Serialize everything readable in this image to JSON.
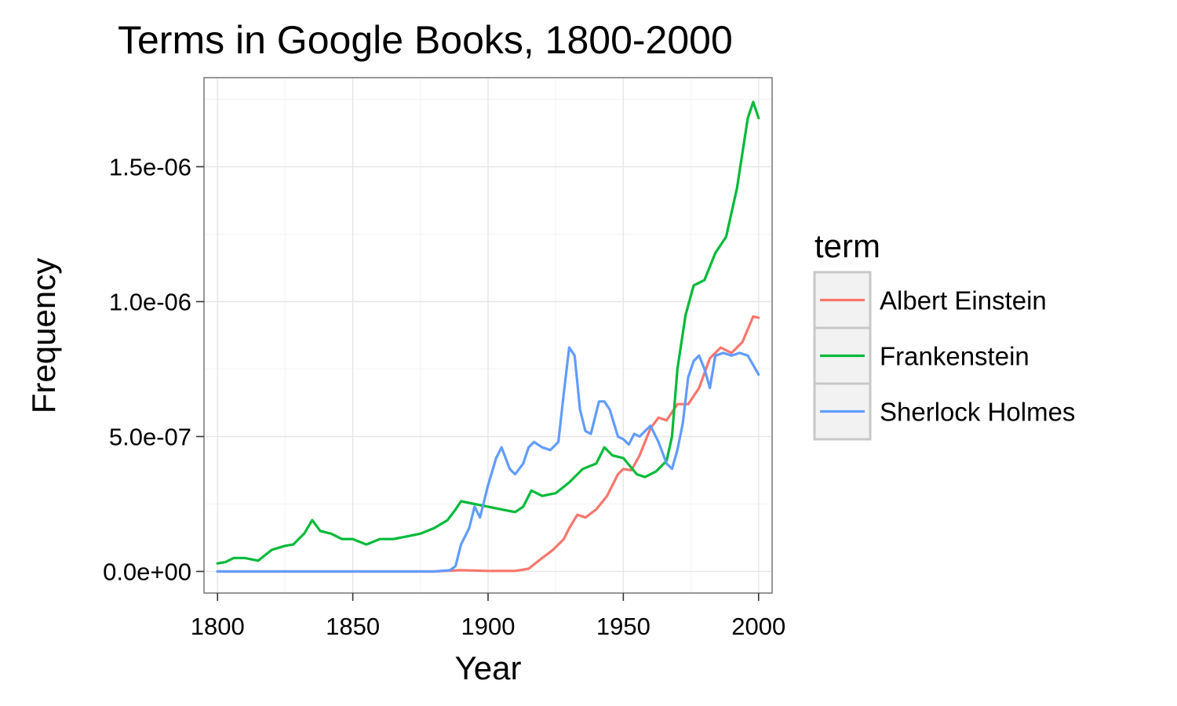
{
  "chart_data": {
    "type": "line",
    "title": "Terms in Google Books, 1800-2000",
    "xlabel": "Year",
    "ylabel": "Frequency",
    "xlim": [
      1795,
      2005
    ],
    "ylim": [
      -8e-08,
      1.83e-06
    ],
    "x_ticks": [
      {
        "value": 1800,
        "label": "1800"
      },
      {
        "value": 1850,
        "label": "1850"
      },
      {
        "value": 1900,
        "label": "1900"
      },
      {
        "value": 1950,
        "label": "1950"
      },
      {
        "value": 2000,
        "label": "2000"
      }
    ],
    "y_ticks": [
      {
        "value": 0,
        "label": "0.0e+00"
      },
      {
        "value": 5e-07,
        "label": "5.0e-07"
      },
      {
        "value": 1e-06,
        "label": "1.0e-06"
      },
      {
        "value": 1.5e-06,
        "label": "1.5e-06"
      }
    ],
    "grid": true,
    "legend": {
      "title": "term",
      "position": "right"
    },
    "series": [
      {
        "name": "Albert Einstein",
        "color": "#F8766D",
        "x": [
          1800,
          1880,
          1890,
          1900,
          1910,
          1915,
          1920,
          1924,
          1928,
          1930,
          1933,
          1936,
          1940,
          1944,
          1948,
          1950,
          1953,
          1956,
          1960,
          1963,
          1966,
          1970,
          1974,
          1978,
          1982,
          1986,
          1990,
          1994,
          1998,
          2000
        ],
        "y": [
          0,
          0,
          5e-09,
          2e-09,
          2e-09,
          1e-08,
          5e-08,
          8e-08,
          1.2e-07,
          1.6e-07,
          2.1e-07,
          2e-07,
          2.3e-07,
          2.8e-07,
          3.6e-07,
          3.8e-07,
          3.75e-07,
          4.3e-07,
          5.3e-07,
          5.7e-07,
          5.6e-07,
          6.2e-07,
          6.2e-07,
          6.8e-07,
          7.9e-07,
          8.3e-07,
          8.1e-07,
          8.5e-07,
          9.45e-07,
          9.4e-07
        ]
      },
      {
        "name": "Frankenstein",
        "color": "#00BA38",
        "x": [
          1800,
          1803,
          1806,
          1810,
          1815,
          1820,
          1825,
          1828,
          1832,
          1835,
          1838,
          1842,
          1846,
          1850,
          1855,
          1860,
          1865,
          1870,
          1875,
          1880,
          1885,
          1888,
          1890,
          1895,
          1900,
          1905,
          1910,
          1913,
          1916,
          1920,
          1925,
          1930,
          1935,
          1940,
          1943,
          1946,
          1950,
          1955,
          1958,
          1962,
          1966,
          1968,
          1970,
          1973,
          1976,
          1980,
          1984,
          1988,
          1992,
          1996,
          1998,
          2000
        ],
        "y": [
          3e-08,
          3.5e-08,
          5e-08,
          5e-08,
          4e-08,
          8e-08,
          9.5e-08,
          1e-07,
          1.4e-07,
          1.9e-07,
          1.5e-07,
          1.4e-07,
          1.2e-07,
          1.2e-07,
          1e-07,
          1.2e-07,
          1.2e-07,
          1.3e-07,
          1.4e-07,
          1.6e-07,
          1.9e-07,
          2.3e-07,
          2.6e-07,
          2.5e-07,
          2.4e-07,
          2.3e-07,
          2.2e-07,
          2.4e-07,
          3e-07,
          2.8e-07,
          2.9e-07,
          3.3e-07,
          3.8e-07,
          4e-07,
          4.6e-07,
          4.3e-07,
          4.2e-07,
          3.6e-07,
          3.5e-07,
          3.7e-07,
          4.1e-07,
          5e-07,
          7.5e-07,
          9.5e-07,
          1.06e-06,
          1.08e-06,
          1.18e-06,
          1.24e-06,
          1.42e-06,
          1.68e-06,
          1.74e-06,
          1.68e-06
        ]
      },
      {
        "name": "Sherlock Holmes",
        "color": "#619CFF",
        "x": [
          1800,
          1880,
          1886,
          1888,
          1890,
          1893,
          1895,
          1897,
          1900,
          1903,
          1905,
          1908,
          1910,
          1913,
          1915,
          1917,
          1920,
          1923,
          1926,
          1928,
          1930,
          1932,
          1934,
          1936,
          1938,
          1941,
          1943,
          1945,
          1948,
          1950,
          1952,
          1954,
          1956,
          1958,
          1960,
          1963,
          1966,
          1968,
          1970,
          1972,
          1974,
          1976,
          1978,
          1980,
          1982,
          1984,
          1987,
          1990,
          1993,
          1996,
          2000
        ],
        "y": [
          0,
          0,
          5e-09,
          2e-08,
          1e-07,
          1.6e-07,
          2.4e-07,
          2e-07,
          3.2e-07,
          4.2e-07,
          4.6e-07,
          3.8e-07,
          3.6e-07,
          4e-07,
          4.6e-07,
          4.8e-07,
          4.6e-07,
          4.5e-07,
          4.8e-07,
          6.6e-07,
          8.3e-07,
          8e-07,
          6e-07,
          5.2e-07,
          5.1e-07,
          6.3e-07,
          6.3e-07,
          6e-07,
          5e-07,
          4.9e-07,
          4.7e-07,
          5.1e-07,
          5e-07,
          5.2e-07,
          5.4e-07,
          4.8e-07,
          4e-07,
          3.8e-07,
          4.5e-07,
          5.5e-07,
          7.2e-07,
          7.8e-07,
          8e-07,
          7.5e-07,
          6.8e-07,
          8e-07,
          8.1e-07,
          8e-07,
          8.1e-07,
          8e-07,
          7.3e-07
        ]
      }
    ]
  }
}
